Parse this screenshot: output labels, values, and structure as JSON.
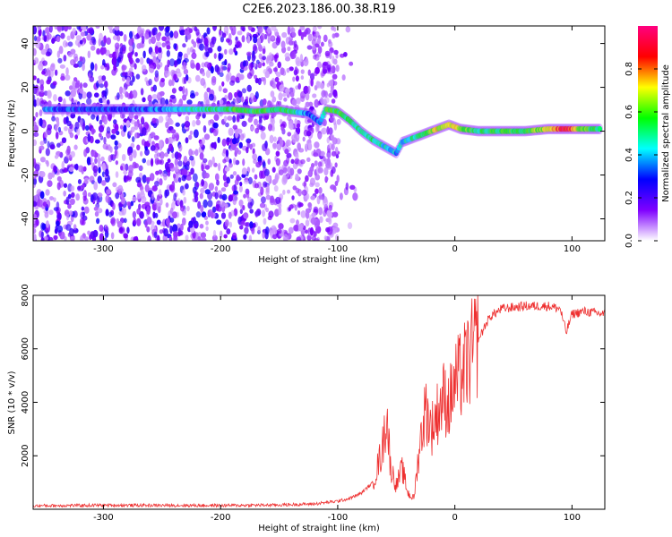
{
  "title": "C2E6.2023.186.00.38.R19",
  "chart_data": [
    {
      "type": "heatmap",
      "xlabel": "Height of straight line (km)",
      "ylabel": "Frequency (Hz)",
      "xlim": [
        -360,
        128
      ],
      "ylim": [
        -50,
        48
      ],
      "xticks": [
        -300,
        -200,
        -100,
        0,
        100
      ],
      "yticks": [
        -40,
        -20,
        0,
        20,
        40
      ],
      "colorbar": {
        "label": "Normalized spectral amplitude",
        "range": [
          0.0,
          1.0
        ],
        "ticks": [
          0.0,
          0.2,
          0.4,
          0.6,
          0.8
        ],
        "colors": [
          "#ffffff",
          "#7f00ff",
          "#0000ff",
          "#00ffff",
          "#00ff00",
          "#ffff00",
          "#ff0000",
          "#ff0080"
        ]
      },
      "noise_region_x": [
        -360,
        -100
      ],
      "ridge": [
        {
          "x": -350,
          "y": 10,
          "a": 0.35
        },
        {
          "x": -330,
          "y": 10,
          "a": 0.3
        },
        {
          "x": -300,
          "y": 10,
          "a": 0.3
        },
        {
          "x": -270,
          "y": 10,
          "a": 0.3
        },
        {
          "x": -240,
          "y": 10,
          "a": 0.4
        },
        {
          "x": -210,
          "y": 10,
          "a": 0.5
        },
        {
          "x": -190,
          "y": 10,
          "a": 0.55
        },
        {
          "x": -170,
          "y": 9,
          "a": 0.55
        },
        {
          "x": -150,
          "y": 10,
          "a": 0.55
        },
        {
          "x": -140,
          "y": 9,
          "a": 0.5
        },
        {
          "x": -125,
          "y": 8,
          "a": 0.35
        },
        {
          "x": -115,
          "y": 4,
          "a": 0.3
        },
        {
          "x": -110,
          "y": 10,
          "a": 0.55
        },
        {
          "x": -100,
          "y": 9,
          "a": 0.55
        },
        {
          "x": -90,
          "y": 5,
          "a": 0.5
        },
        {
          "x": -80,
          "y": 0,
          "a": 0.5
        },
        {
          "x": -70,
          "y": -4,
          "a": 0.5
        },
        {
          "x": -60,
          "y": -7,
          "a": 0.45
        },
        {
          "x": -50,
          "y": -10,
          "a": 0.4
        },
        {
          "x": -45,
          "y": -5,
          "a": 0.4
        },
        {
          "x": -35,
          "y": -3,
          "a": 0.5
        },
        {
          "x": -25,
          "y": -1,
          "a": 0.6
        },
        {
          "x": -15,
          "y": 1,
          "a": 0.7
        },
        {
          "x": -5,
          "y": 3,
          "a": 0.7
        },
        {
          "x": 5,
          "y": 1,
          "a": 0.65
        },
        {
          "x": 20,
          "y": 0,
          "a": 0.5
        },
        {
          "x": 40,
          "y": 0,
          "a": 0.55
        },
        {
          "x": 60,
          "y": 0,
          "a": 0.55
        },
        {
          "x": 80,
          "y": 1,
          "a": 0.7
        },
        {
          "x": 95,
          "y": 1,
          "a": 0.9
        },
        {
          "x": 110,
          "y": 1,
          "a": 0.6
        },
        {
          "x": 125,
          "y": 1,
          "a": 0.5
        }
      ]
    },
    {
      "type": "line",
      "xlabel": "Height of straight line (km)",
      "ylabel": "SNR (10 * v/v)",
      "xlim": [
        -360,
        128
      ],
      "ylim": [
        0,
        8000
      ],
      "xticks": [
        -300,
        -200,
        -100,
        0,
        100
      ],
      "yticks": [
        2000,
        4000,
        6000,
        8000
      ],
      "color": "#ee3030",
      "series": [
        {
          "x": [
            -360,
            -300,
            -200,
            -150,
            -120,
            -100,
            -90,
            -80,
            -70,
            -62,
            -58,
            -55,
            -50,
            -45,
            -40,
            -35,
            -30,
            -25,
            -20,
            -15,
            -10,
            -5,
            0,
            5,
            10,
            15,
            20,
            25,
            30,
            40,
            60,
            80,
            90,
            95,
            100,
            110,
            128
          ],
          "y": [
            130,
            150,
            140,
            160,
            200,
            300,
            400,
            600,
            1000,
            2200,
            3600,
            1600,
            900,
            1500,
            600,
            400,
            2400,
            3800,
            3000,
            3600,
            4200,
            3900,
            4700,
            5000,
            5400,
            5900,
            6300,
            6800,
            7200,
            7500,
            7600,
            7600,
            7500,
            6600,
            7300,
            7400,
            7300
          ]
        }
      ]
    }
  ]
}
